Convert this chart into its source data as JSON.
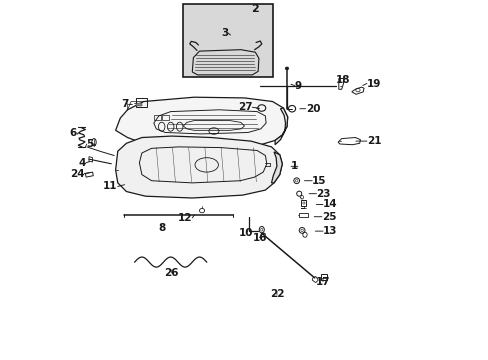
{
  "bg_color": "#ffffff",
  "line_color": "#1a1a1a",
  "inset_bg": "#d8d8d8",
  "fig_w": 4.89,
  "fig_h": 3.6,
  "dpi": 100,
  "labels": {
    "1": [
      0.618,
      0.538,
      0.648,
      0.538,
      "right"
    ],
    "2": [
      0.53,
      0.958,
      0.53,
      0.975,
      "center"
    ],
    "3": [
      0.47,
      0.895,
      0.455,
      0.908,
      "right"
    ],
    "4": [
      0.082,
      0.555,
      0.06,
      0.548,
      "right"
    ],
    "5": [
      0.096,
      0.59,
      0.08,
      0.6,
      "right"
    ],
    "6": [
      0.044,
      0.618,
      0.035,
      0.63,
      "right"
    ],
    "7": [
      0.2,
      0.71,
      0.178,
      0.71,
      "right"
    ],
    "8": [
      0.27,
      0.388,
      0.27,
      0.368,
      "center"
    ],
    "9": [
      0.618,
      0.77,
      0.64,
      0.762,
      "left"
    ],
    "10": [
      0.515,
      0.372,
      0.505,
      0.352,
      "center"
    ],
    "11": [
      0.178,
      0.49,
      0.148,
      0.482,
      "right"
    ],
    "12": [
      0.368,
      0.412,
      0.355,
      0.395,
      "right"
    ],
    "13": [
      0.685,
      0.358,
      0.718,
      0.358,
      "left"
    ],
    "14": [
      0.688,
      0.432,
      0.718,
      0.432,
      "left"
    ],
    "15": [
      0.655,
      0.498,
      0.688,
      0.498,
      "left"
    ],
    "16": [
      0.555,
      0.358,
      0.542,
      0.34,
      "center"
    ],
    "17": [
      0.718,
      0.238,
      0.718,
      0.218,
      "center"
    ],
    "18": [
      0.775,
      0.762,
      0.775,
      0.778,
      "center"
    ],
    "19": [
      0.818,
      0.758,
      0.84,
      0.768,
      "left"
    ],
    "20": [
      0.642,
      0.698,
      0.67,
      0.698,
      "left"
    ],
    "21": [
      0.798,
      0.608,
      0.84,
      0.608,
      "left"
    ],
    "22": [
      0.59,
      0.202,
      0.59,
      0.182,
      "center"
    ],
    "23": [
      0.668,
      0.462,
      0.7,
      0.462,
      "left"
    ],
    "24": [
      0.082,
      0.522,
      0.055,
      0.518,
      "right"
    ],
    "25": [
      0.682,
      0.398,
      0.715,
      0.398,
      "left"
    ],
    "26": [
      0.298,
      0.262,
      0.298,
      0.242,
      "center"
    ],
    "27": [
      0.552,
      0.698,
      0.522,
      0.702,
      "right"
    ]
  }
}
